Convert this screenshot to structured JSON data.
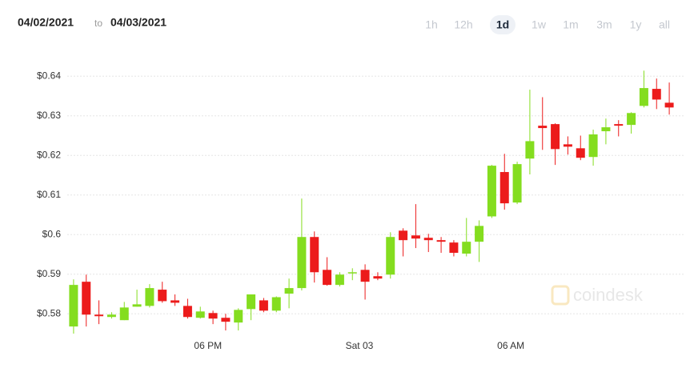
{
  "header": {
    "from": "04/02/2021",
    "to_word": "to",
    "to": "04/03/2021",
    "ranges": [
      "1h",
      "12h",
      "1d",
      "1w",
      "1m",
      "3m",
      "1y",
      "all"
    ],
    "selected": "1d"
  },
  "watermark": "coindesk",
  "chart_data": {
    "type": "candlestick",
    "up_color": "#84dd1f",
    "down_color": "#ec1b1b",
    "grid": true,
    "categories": [
      null,
      null,
      null,
      null,
      null,
      null,
      null,
      null,
      null,
      null,
      null,
      null,
      null,
      null,
      null,
      null,
      null,
      null,
      null,
      null,
      null,
      null,
      null,
      null,
      null,
      null,
      null,
      null,
      null,
      null,
      null,
      null,
      null,
      null,
      null,
      null,
      null,
      null,
      null,
      null,
      null,
      null,
      null,
      null,
      null,
      null,
      null,
      null
    ],
    "open": [
      0.5768,
      0.5881,
      0.5798,
      0.5792,
      0.5784,
      0.5818,
      0.582,
      0.5861,
      0.5834,
      0.582,
      0.579,
      0.5802,
      0.579,
      0.5778,
      0.5812,
      0.5834,
      0.5808,
      0.5851,
      0.5865,
      0.5994,
      0.5911,
      0.5873,
      0.5903,
      0.5911,
      0.5895,
      0.5899,
      0.601,
      0.5998,
      0.5992,
      0.5986,
      0.598,
      0.5952,
      0.5982,
      0.6046,
      0.6158,
      0.6081,
      0.6192,
      0.6275,
      0.6279,
      0.6228,
      0.6218,
      0.6196,
      0.6261,
      0.6279,
      0.6277,
      0.6325,
      0.6368,
      0.6333
    ],
    "high": [
      0.5887,
      0.5899,
      0.5834,
      0.5804,
      0.583,
      0.5861,
      0.5875,
      0.5881,
      0.5849,
      0.5838,
      0.5818,
      0.5808,
      0.58,
      0.5814,
      0.5849,
      0.584,
      0.5844,
      0.5889,
      0.6091,
      0.6008,
      0.5943,
      0.5905,
      0.5915,
      0.5925,
      0.5905,
      0.6006,
      0.6016,
      0.6077,
      0.6002,
      0.5994,
      0.5986,
      0.6042,
      0.6036,
      0.6176,
      0.6204,
      0.6184,
      0.6366,
      0.6347,
      0.6281,
      0.6248,
      0.625,
      0.6265,
      0.6293,
      0.6289,
      0.6309,
      0.6414,
      0.6394,
      0.6384
    ],
    "low": [
      0.575,
      0.5768,
      0.5774,
      0.5788,
      0.5784,
      0.5818,
      0.5816,
      0.5828,
      0.582,
      0.5788,
      0.5788,
      0.5774,
      0.5758,
      0.5758,
      0.5784,
      0.5804,
      0.5804,
      0.5814,
      0.5859,
      0.5879,
      0.5871,
      0.5869,
      0.5885,
      0.5836,
      0.5885,
      0.5889,
      0.5945,
      0.5966,
      0.5956,
      0.5954,
      0.5945,
      0.5945,
      0.5931,
      0.6042,
      0.6063,
      0.6077,
      0.6152,
      0.6214,
      0.6176,
      0.6202,
      0.6188,
      0.6174,
      0.6228,
      0.6248,
      0.6255,
      0.6321,
      0.6317,
      0.6303
    ],
    "close": [
      0.5873,
      0.5798,
      0.5794,
      0.5798,
      0.5816,
      0.5824,
      0.5865,
      0.5832,
      0.5828,
      0.5792,
      0.5806,
      0.5788,
      0.578,
      0.581,
      0.5849,
      0.5808,
      0.5842,
      0.5865,
      0.5994,
      0.5905,
      0.5873,
      0.5899,
      0.5905,
      0.5881,
      0.5889,
      0.5994,
      0.5986,
      0.599,
      0.5986,
      0.5982,
      0.5954,
      0.5982,
      0.6022,
      0.6174,
      0.6079,
      0.6178,
      0.6236,
      0.6269,
      0.6216,
      0.6222,
      0.6194,
      0.6253,
      0.6271,
      0.6275,
      0.6307,
      0.637,
      0.6341,
      0.6321
    ],
    "ylim": [
      0.5744,
      0.6455
    ],
    "yticks": [
      {
        "value": 0.58,
        "label": "$0.58"
      },
      {
        "value": 0.59,
        "label": "$0.59"
      },
      {
        "value": 0.6,
        "label": "$0.6"
      },
      {
        "value": 0.61,
        "label": "$0.61"
      },
      {
        "value": 0.62,
        "label": "$0.62"
      },
      {
        "value": 0.63,
        "label": "$0.63"
      },
      {
        "value": 0.64,
        "label": "$0.64"
      }
    ],
    "xlim": [
      -0.5,
      47.5
    ],
    "xticks": [
      {
        "value": 10.6,
        "label": "06 PM"
      },
      {
        "value": 22.55,
        "label": "Sat 03"
      },
      {
        "value": 34.5,
        "label": "06 AM"
      }
    ]
  }
}
